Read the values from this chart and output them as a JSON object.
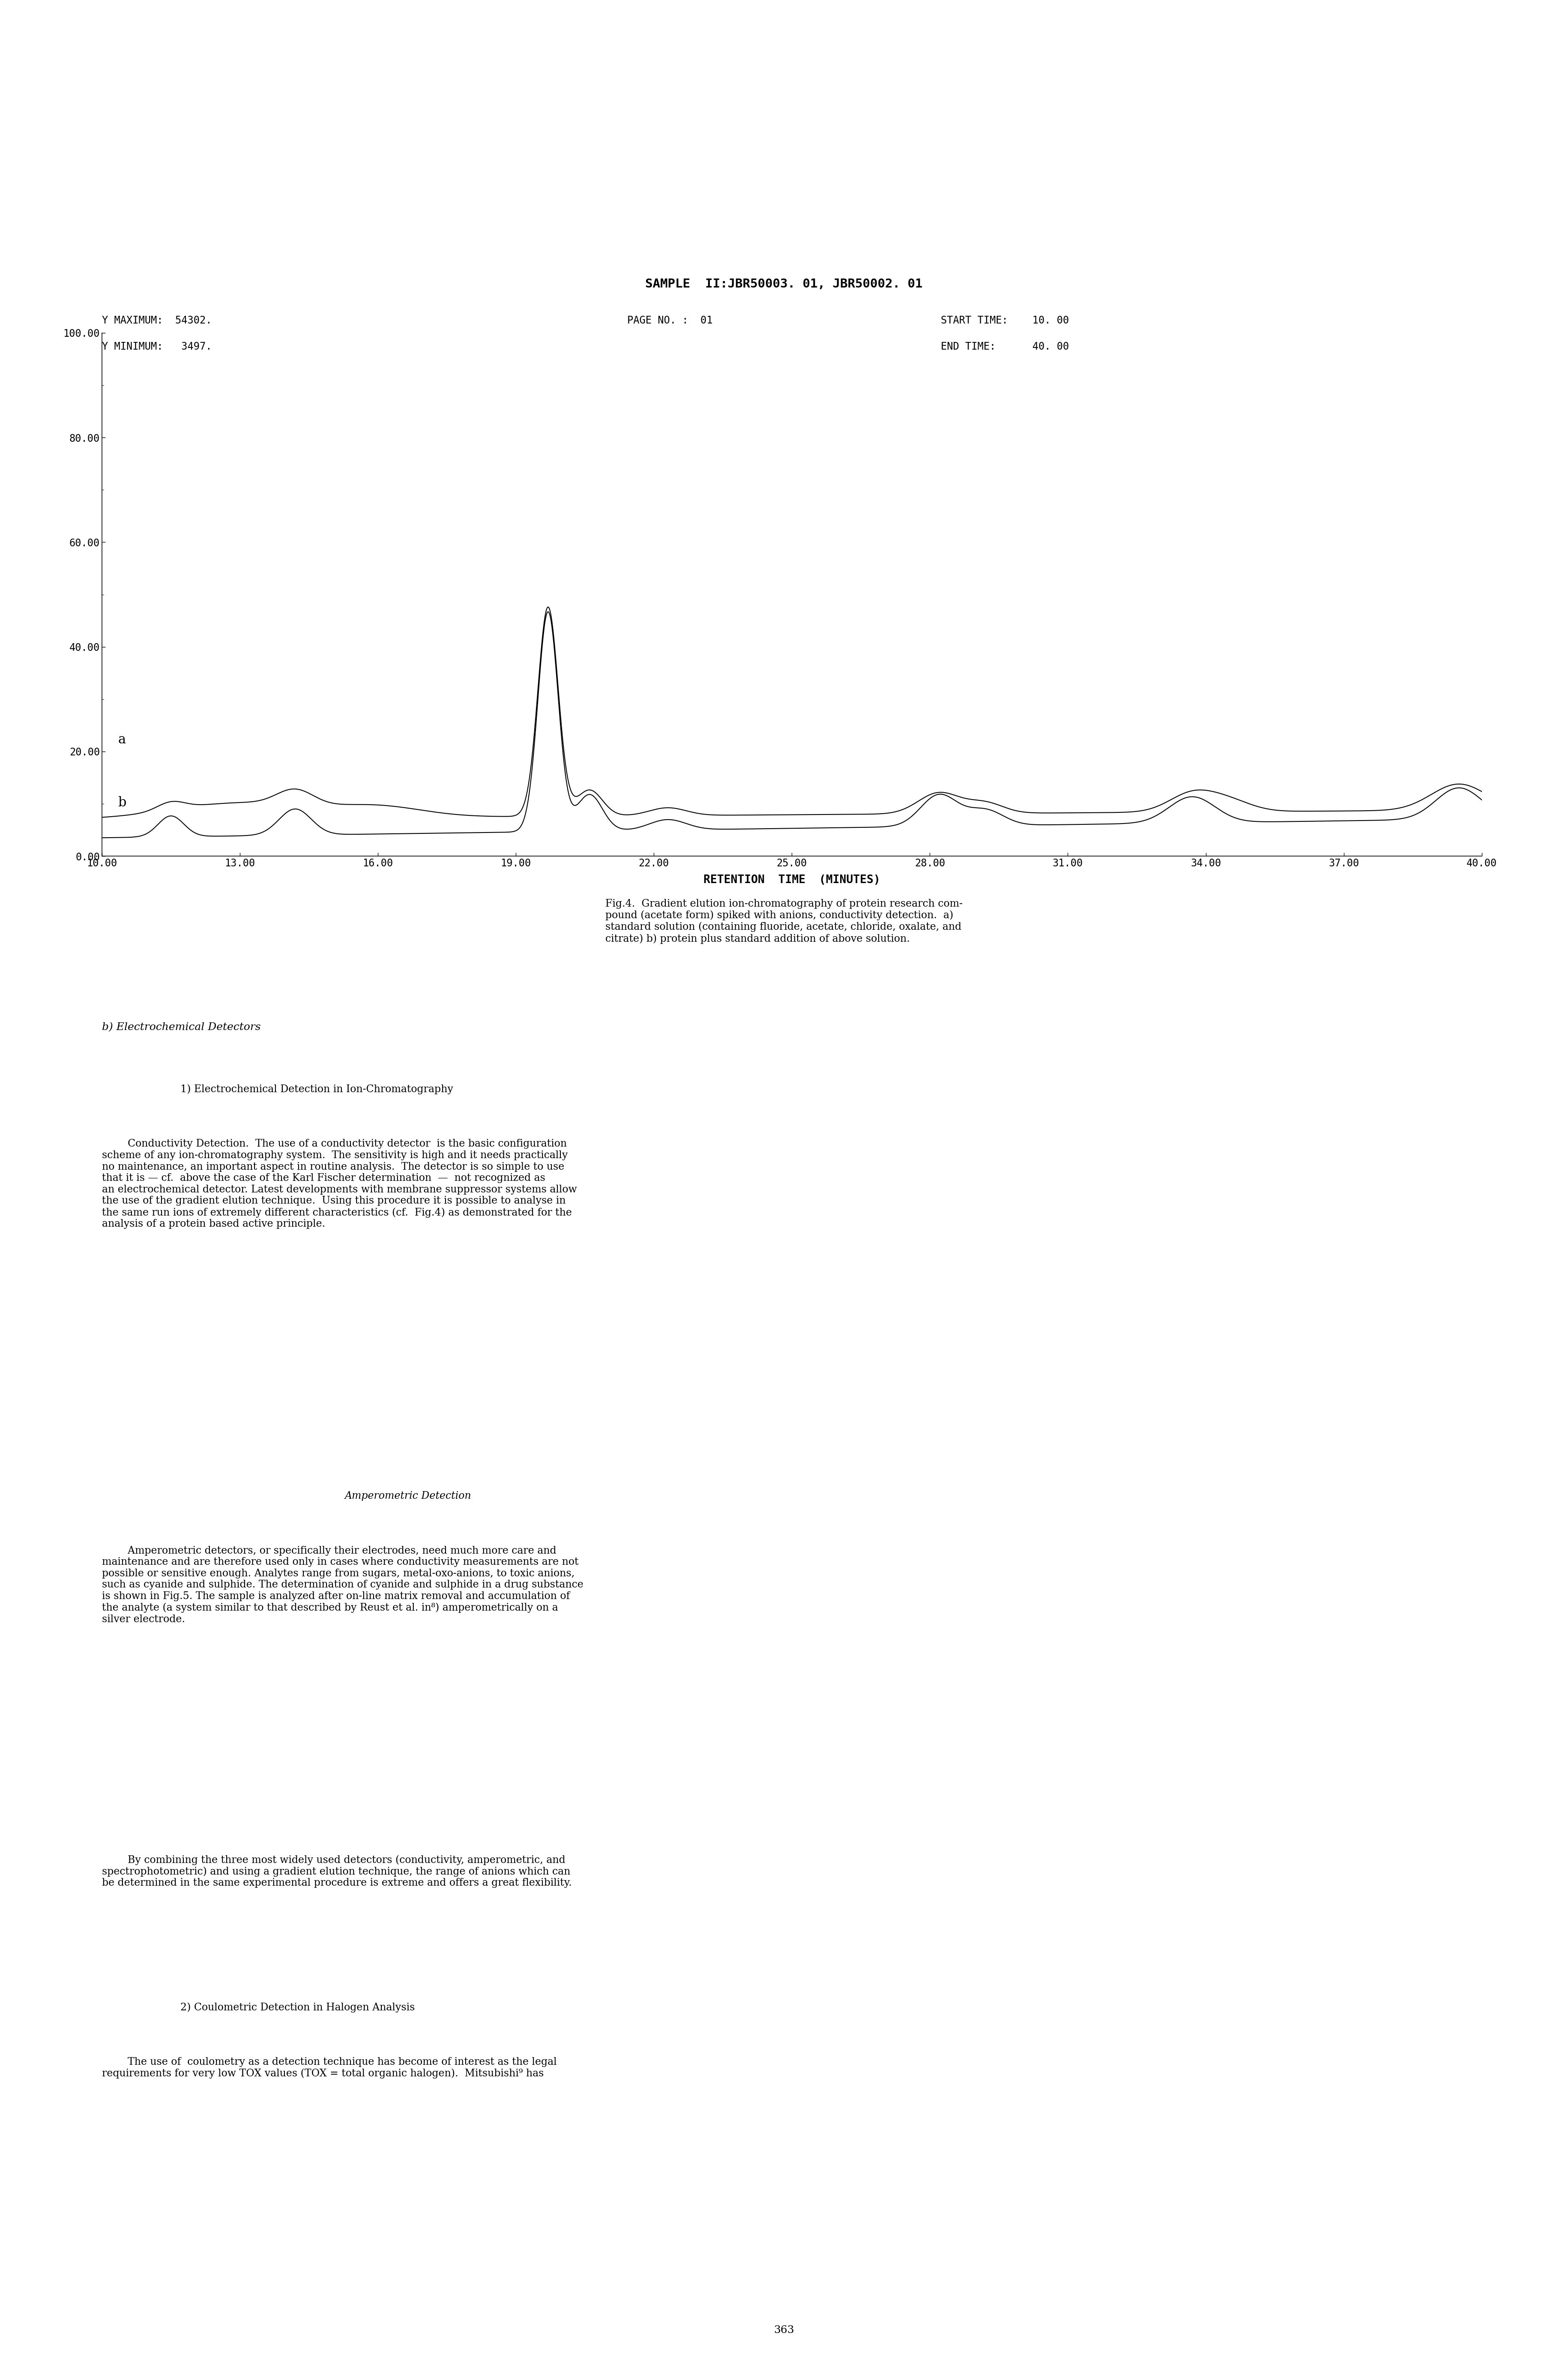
{
  "title_line": "SAMPLE  II:JBR50003. 01, JBR50002. 01",
  "header_left_line1": "Y MAXIMUM:  54302.",
  "header_left_line2": "Y MINIMUM:   3497.",
  "header_center": "PAGE NO. :  01",
  "header_right_line1": "START TIME:    10. 00",
  "header_right_line2": "END TIME:      40. 00",
  "xlabel": "RETENTION  TIME  (MINUTES)",
  "yticks": [
    0.0,
    20.0,
    40.0,
    60.0,
    80.0,
    100.0
  ],
  "xticks": [
    10.0,
    13.0,
    16.0,
    19.0,
    22.0,
    25.0,
    28.0,
    31.0,
    34.0,
    37.0,
    40.0
  ],
  "xlim": [
    10.0,
    40.0
  ],
  "ylim": [
    0.0,
    100.0
  ],
  "caption": "Fig.4.  Gradient elution ion-chromatography of protein research com-\npound (acetate form) spiked with anions, conductivity detection.  a)\nstandard solution (containing fluoride, acetate, chloride, oxalate, and\ncitrate) b) protein plus standard addition of above solution.",
  "page_number": "363"
}
